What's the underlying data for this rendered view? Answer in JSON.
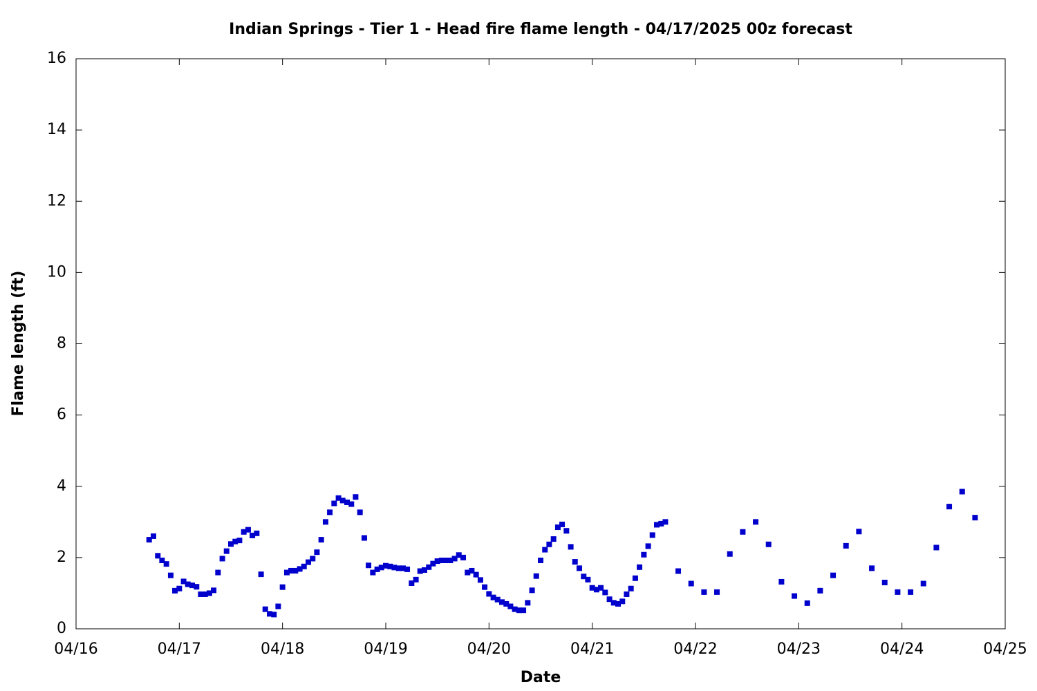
{
  "chart_data": {
    "type": "scatter",
    "title": "Indian Springs - Tier 1 - Head fire flame length - 04/17/2025 00z forecast",
    "x_label": "Date",
    "y_label": "Flame length (ft)",
    "xlim": [
      16,
      25
    ],
    "xticks": [
      {
        "value": 16,
        "label": "04/16"
      },
      {
        "value": 17,
        "label": "04/17"
      },
      {
        "value": 18,
        "label": "04/18"
      },
      {
        "value": 19,
        "label": "04/19"
      },
      {
        "value": 20,
        "label": "04/20"
      },
      {
        "value": 21,
        "label": "04/21"
      },
      {
        "value": 22,
        "label": "04/22"
      },
      {
        "value": 23,
        "label": "04/23"
      },
      {
        "value": 24,
        "label": "04/24"
      },
      {
        "value": 25,
        "label": "04/25"
      }
    ],
    "ylim": [
      0,
      16
    ],
    "yticks": [
      0,
      2,
      4,
      6,
      8,
      10,
      12,
      14,
      16
    ],
    "grid": false,
    "series": [
      {
        "color": "#0000cd",
        "x": [
          16.708,
          16.75,
          16.792,
          16.833,
          16.875,
          16.917,
          16.958,
          17,
          17.042,
          17.083,
          17.125,
          17.167,
          17.208,
          17.25,
          17.292,
          17.333,
          17.375,
          17.417,
          17.458,
          17.5,
          17.542,
          17.583,
          17.625,
          17.667,
          17.708,
          17.75,
          17.792,
          17.833,
          17.875,
          17.917,
          17.958,
          18,
          18.042,
          18.083,
          18.125,
          18.167,
          18.208,
          18.25,
          18.292,
          18.333,
          18.375,
          18.417,
          18.458,
          18.5,
          18.542,
          18.583,
          18.625,
          18.667,
          18.708,
          18.75,
          18.792,
          18.833,
          18.875,
          18.917,
          18.958,
          19,
          19.042,
          19.083,
          19.125,
          19.167,
          19.208,
          19.25,
          19.292,
          19.333,
          19.375,
          19.417,
          19.458,
          19.5,
          19.542,
          19.583,
          19.625,
          19.667,
          19.708,
          19.75,
          19.792,
          19.833,
          19.875,
          19.917,
          19.958,
          20,
          20.042,
          20.083,
          20.125,
          20.167,
          20.208,
          20.25,
          20.292,
          20.333,
          20.375,
          20.417,
          20.458,
          20.5,
          20.542,
          20.583,
          20.625,
          20.667,
          20.708,
          20.75,
          20.792,
          20.833,
          20.875,
          20.917,
          20.958,
          21,
          21.042,
          21.083,
          21.125,
          21.167,
          21.208,
          21.25,
          21.292,
          21.333,
          21.375,
          21.417,
          21.458,
          21.5,
          21.542,
          21.583,
          21.625,
          21.667,
          21.708,
          21.833,
          21.958,
          22.083,
          22.208,
          22.333,
          22.458,
          22.583,
          22.708,
          22.833,
          22.958,
          23.083,
          23.208,
          23.333,
          23.458,
          23.583,
          23.708,
          23.833,
          23.958,
          24.083,
          24.208,
          24.333,
          24.458,
          24.583,
          24.708
        ],
        "values": [
          2.5,
          2.6,
          2.05,
          1.92,
          1.82,
          1.5,
          1.07,
          1.13,
          1.33,
          1.25,
          1.22,
          1.18,
          0.97,
          0.97,
          1.0,
          1.08,
          1.58,
          1.97,
          2.18,
          2.38,
          2.45,
          2.48,
          2.72,
          2.78,
          2.62,
          2.68,
          1.53,
          0.55,
          0.42,
          0.4,
          0.63,
          1.17,
          1.58,
          1.63,
          1.63,
          1.68,
          1.75,
          1.87,
          1.97,
          2.15,
          2.5,
          3.0,
          3.27,
          3.52,
          3.67,
          3.6,
          3.55,
          3.5,
          3.7,
          3.27,
          2.55,
          1.78,
          1.58,
          1.67,
          1.72,
          1.77,
          1.75,
          1.72,
          1.7,
          1.7,
          1.67,
          1.28,
          1.38,
          1.62,
          1.65,
          1.73,
          1.83,
          1.9,
          1.92,
          1.92,
          1.92,
          1.97,
          2.07,
          2.0,
          1.58,
          1.63,
          1.52,
          1.37,
          1.17,
          0.98,
          0.88,
          0.82,
          0.75,
          0.7,
          0.63,
          0.55,
          0.52,
          0.52,
          0.73,
          1.08,
          1.48,
          1.92,
          2.22,
          2.37,
          2.52,
          2.85,
          2.93,
          2.75,
          2.3,
          1.88,
          1.7,
          1.47,
          1.38,
          1.15,
          1.1,
          1.15,
          1.02,
          0.83,
          0.73,
          0.7,
          0.77,
          0.97,
          1.13,
          1.42,
          1.73,
          2.08,
          2.32,
          2.63,
          2.92,
          2.95,
          3.0,
          1.62,
          1.27,
          1.03,
          1.03,
          2.1,
          2.72,
          3.0,
          2.37,
          1.32,
          0.92,
          0.72,
          1.07,
          1.5,
          2.33,
          2.73,
          1.7,
          1.3,
          1.03,
          1.03,
          1.27,
          2.28,
          3.43,
          3.85,
          3.12
        ]
      }
    ]
  }
}
